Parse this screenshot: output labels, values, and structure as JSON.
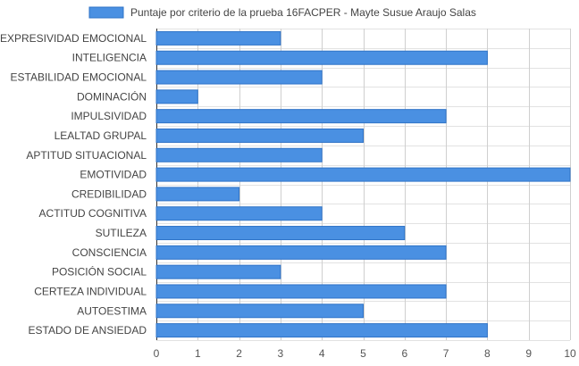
{
  "chart_data": {
    "type": "bar",
    "orientation": "horizontal",
    "title": "",
    "xlabel": "",
    "ylabel": "",
    "categories": [
      "EXPRESIVIDAD EMOCIONAL",
      "INTELIGENCIA",
      "ESTABILIDAD EMOCIONAL",
      "DOMINACIÓN",
      "IMPULSIVIDAD",
      "LEALTAD GRUPAL",
      "APTITUD SITUACIONAL",
      "EMOTIVIDAD",
      "CREDIBILIDAD",
      "ACTITUD COGNITIVA",
      "SUTILEZA",
      "CONSCIENCIA",
      "POSICIÓN SOCIAL",
      "CERTEZA INDIVIDUAL",
      "AUTOESTIMA",
      "ESTADO DE ANSIEDAD"
    ],
    "series": [
      {
        "name": "Puntaje por criterio de la prueba 16FACPER - Mayte Susue Araujo Salas",
        "values": [
          3,
          8,
          4,
          1,
          7,
          5,
          4,
          10,
          2,
          4,
          6,
          7,
          3,
          7,
          5,
          8
        ],
        "color": "#4a90e2"
      }
    ],
    "xlim": [
      0,
      10
    ],
    "ticks": [
      "0",
      "1",
      "2",
      "3",
      "4",
      "5",
      "6",
      "7",
      "8",
      "9",
      "10"
    ],
    "grid": true,
    "legend": "top-center"
  }
}
